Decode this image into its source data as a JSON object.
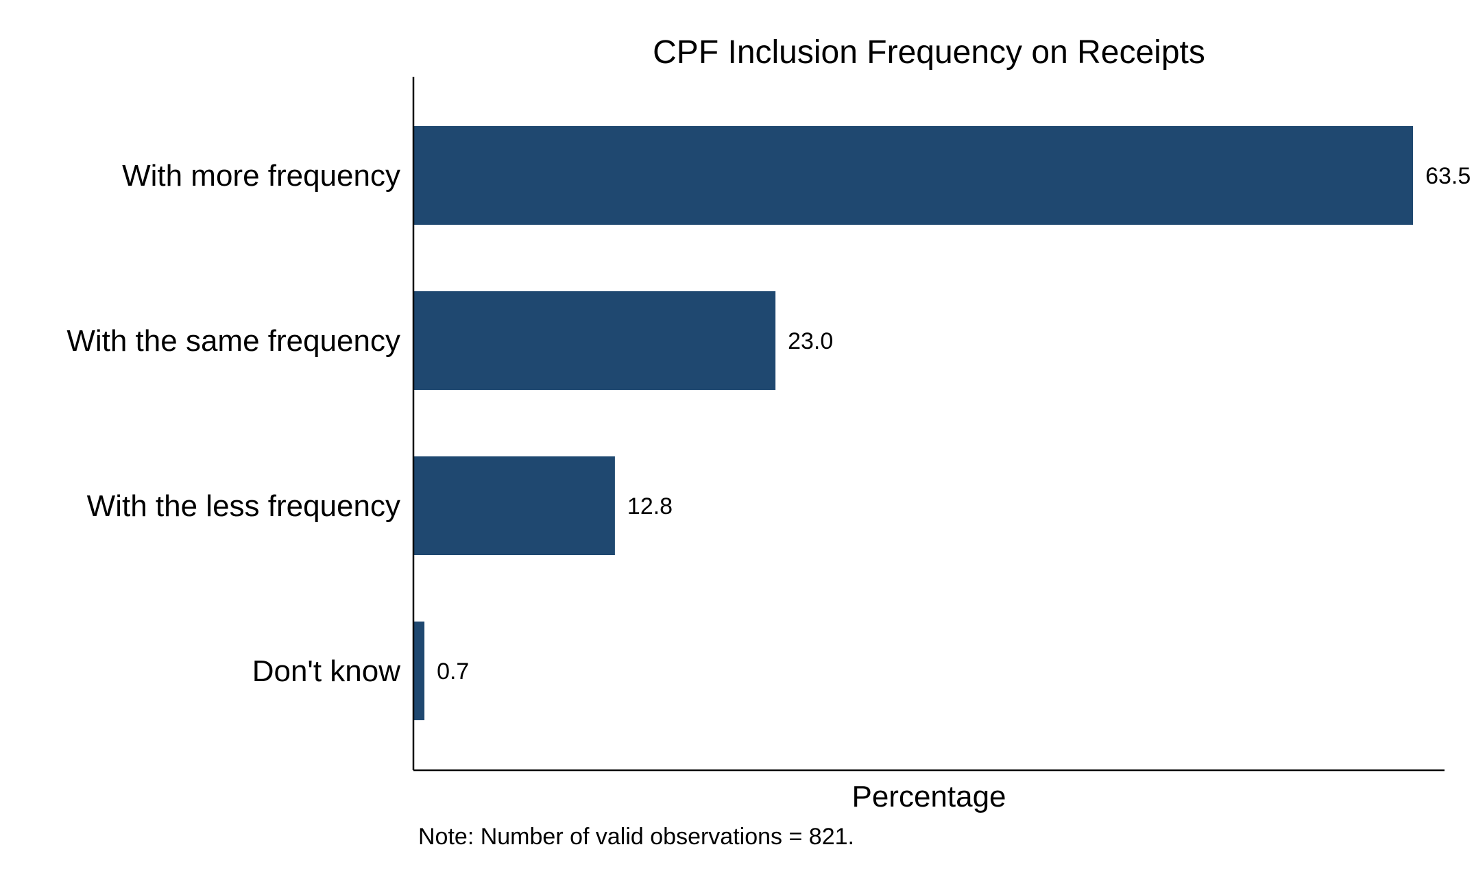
{
  "chart_data": {
    "type": "bar",
    "orientation": "horizontal",
    "title": "CPF Inclusion Frequency on Receipts",
    "categories": [
      "With more frequency",
      "With the same frequency",
      "With the less frequency",
      "Don't know"
    ],
    "values": [
      63.5,
      23.0,
      12.8,
      0.7
    ],
    "value_labels": [
      "63.5",
      "23.0",
      "12.8",
      "0.7"
    ],
    "xlabel": "Percentage",
    "ylabel": "",
    "xlim": [
      0,
      65.5
    ],
    "grid": false,
    "note": "Note: Number of valid observations = 821.",
    "bar_color": "#1f4870"
  }
}
